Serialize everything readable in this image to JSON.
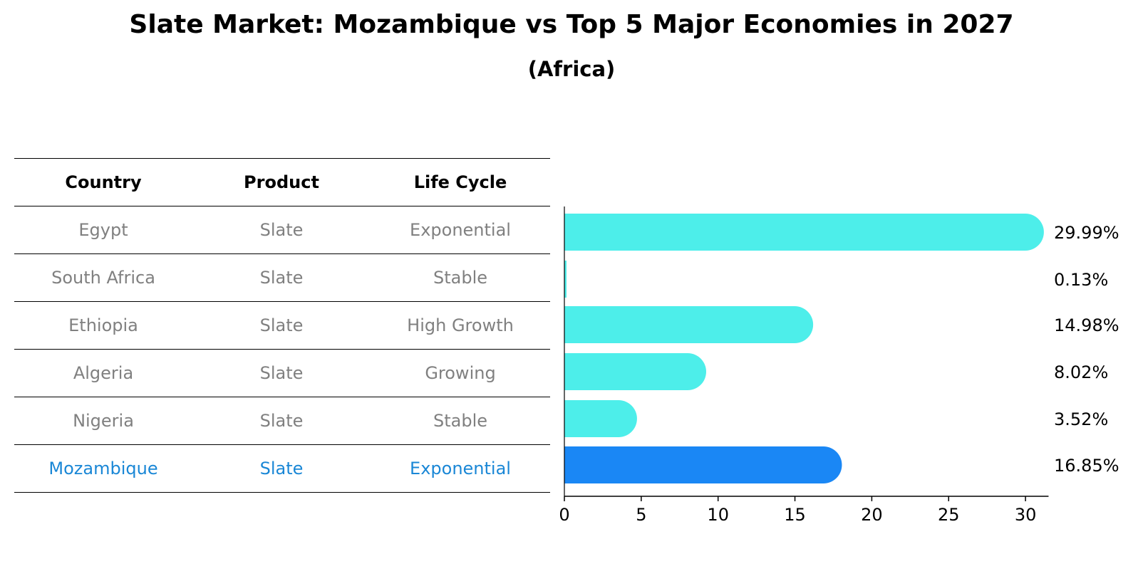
{
  "title": "Slate Market: Mozambique vs Top 5 Major Economies in 2027",
  "subtitle": "(Africa)",
  "table": {
    "headers": [
      "Country",
      "Product",
      "Life Cycle"
    ],
    "rows": [
      {
        "country": "Egypt",
        "product": "Slate",
        "life_cycle": "Exponential"
      },
      {
        "country": "South Africa",
        "product": "Slate",
        "life_cycle": "Stable"
      },
      {
        "country": "Ethiopia",
        "product": "Slate",
        "life_cycle": "High Growth"
      },
      {
        "country": "Algeria",
        "product": "Slate",
        "life_cycle": "Growing"
      },
      {
        "country": "Nigeria",
        "product": "Slate",
        "life_cycle": "Stable"
      },
      {
        "country": "Mozambique",
        "product": "Slate",
        "life_cycle": "Exponential"
      }
    ]
  },
  "chart_data": {
    "type": "bar",
    "orientation": "horizontal",
    "title": "Slate Market: Mozambique vs Top 5 Major Economies in 2027",
    "subtitle": "(Africa)",
    "categories": [
      "Egypt",
      "South Africa",
      "Ethiopia",
      "Algeria",
      "Nigeria",
      "Mozambique"
    ],
    "values": [
      29.99,
      0.13,
      14.98,
      8.02,
      3.52,
      16.85
    ],
    "value_labels": [
      "29.99%",
      "0.13%",
      "14.98%",
      "8.02%",
      "3.52%",
      "16.85%"
    ],
    "highlight": "Mozambique",
    "xlim": [
      0,
      31.5
    ],
    "xticks": [
      0,
      5,
      10,
      15,
      20,
      25,
      30
    ],
    "xlabel": "",
    "ylabel": "",
    "grid": false,
    "colors": {
      "bar": "#4deeea",
      "highlight": "#1a87f5",
      "highlight_text": "#1a87d6",
      "muted_text": "#808080"
    }
  }
}
